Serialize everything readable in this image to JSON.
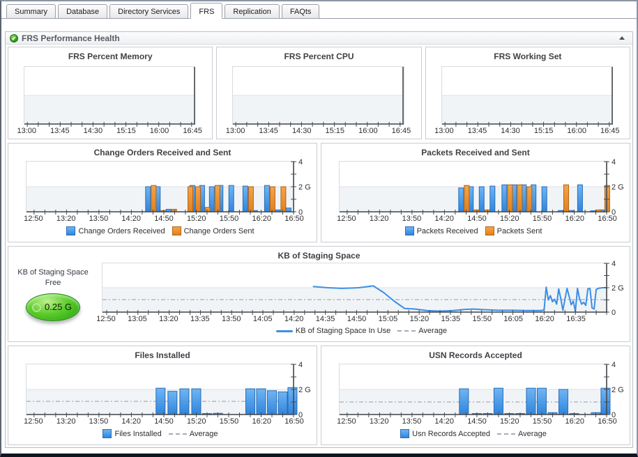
{
  "tabs": {
    "items": [
      {
        "label": "Summary",
        "active": false
      },
      {
        "label": "Database",
        "active": false
      },
      {
        "label": "Directory Services",
        "active": false
      },
      {
        "label": "FRS",
        "active": true
      },
      {
        "label": "Replication",
        "active": false
      },
      {
        "label": "FAQts",
        "active": false
      }
    ]
  },
  "section": {
    "title": "FRS Performance Health",
    "status_icon": "green-check",
    "collapse_icon": "up-triangle"
  },
  "gauge": {
    "title": "KB of Staging Space Free",
    "value": "0.25 G"
  },
  "colors": {
    "bar_blue_top": "#6fb5f4",
    "bar_blue_bottom": "#2f85dc",
    "bar_blue_border": "#2a6cb4",
    "bar_orange_top": "#f4a44b",
    "bar_orange_bottom": "#e0811f",
    "bar_orange_border": "#b26312",
    "line_blue": "#3a8fe6",
    "average_dash": "#a7abb8",
    "band": "#f1f4f7",
    "gridline": "#dce1e6",
    "axis": "#45494e",
    "tick_label": "#2e2e2e"
  },
  "chart_data": [
    {
      "id": "frs-percent-memory",
      "type": "empty",
      "title": "FRS Percent Memory",
      "x": {
        "min": "12:56",
        "max": "16:49",
        "labels": [
          "13:00",
          "13:45",
          "14:30",
          "15:15",
          "16:00",
          "16:45"
        ],
        "minor_step": 15
      },
      "y": {
        "min": 0,
        "max": 4,
        "band_below": 2
      }
    },
    {
      "id": "frs-percent-cpu",
      "type": "empty",
      "title": "FRS Percent CPU",
      "x": {
        "min": "12:56",
        "max": "16:49",
        "labels": [
          "13:00",
          "13:45",
          "14:30",
          "15:15",
          "16:00",
          "16:45"
        ],
        "minor_step": 15
      },
      "y": {
        "min": 0,
        "max": 4,
        "band_below": 2
      }
    },
    {
      "id": "frs-working-set",
      "type": "empty",
      "title": "FRS Working Set",
      "x": {
        "min": "12:56",
        "max": "16:49",
        "labels": [
          "13:00",
          "13:45",
          "14:30",
          "15:15",
          "16:00",
          "16:45"
        ],
        "minor_step": 15
      },
      "y": {
        "min": 0,
        "max": 4,
        "band_below": 2
      }
    },
    {
      "id": "change-orders",
      "type": "bar",
      "pair": true,
      "title": "Change Orders Received and Sent",
      "x": {
        "min": "12:43",
        "max": "16:50",
        "labels": [
          "12:50",
          "13:20",
          "13:50",
          "14:20",
          "14:50",
          "15:20",
          "15:50",
          "16:20",
          "16:50"
        ],
        "minor_step": 10
      },
      "y": {
        "min": 0,
        "max": 4,
        "band_below": 2,
        "ticks": [
          {
            "v": 4,
            "label": "4"
          },
          {
            "v": 2,
            "label": "2 G"
          },
          {
            "v": 0,
            "label": "0"
          }
        ]
      },
      "series": [
        {
          "name": "Change Orders Received",
          "color": "blue",
          "points": [
            [
              "14:38",
              2.0
            ],
            [
              "14:47",
              2.0
            ],
            [
              "14:57",
              0.2
            ],
            [
              "15:19",
              2.1
            ],
            [
              "15:28",
              2.1
            ],
            [
              "15:37",
              2.0
            ],
            [
              "15:45",
              2.1
            ],
            [
              "15:55",
              2.1
            ],
            [
              "16:08",
              2.05
            ],
            [
              "16:17",
              0.1
            ],
            [
              "16:28",
              2.1
            ],
            [
              "16:38",
              0.15
            ],
            [
              "16:48",
              0.3
            ]
          ]
        },
        {
          "name": "Change Orders Sent",
          "color": "orange",
          "points": [
            [
              "14:38",
              2.1
            ],
            [
              "14:47",
              0.1
            ],
            [
              "14:57",
              0.2
            ],
            [
              "15:12",
              2.0
            ],
            [
              "15:19",
              2.0
            ],
            [
              "15:28",
              0.35
            ],
            [
              "15:37",
              2.1
            ],
            [
              "16:08",
              2.0
            ],
            [
              "16:28",
              2.0
            ],
            [
              "16:38",
              2.0
            ]
          ]
        }
      ]
    },
    {
      "id": "packets",
      "type": "bar",
      "pair": true,
      "title": "Packets Received and Sent",
      "x": {
        "min": "12:43",
        "max": "16:50",
        "labels": [
          "12:50",
          "13:20",
          "13:50",
          "14:20",
          "14:50",
          "15:20",
          "15:50",
          "16:20",
          "16:50"
        ],
        "minor_step": 10
      },
      "y": {
        "min": 0,
        "max": 4,
        "band_below": 2,
        "ticks": [
          {
            "v": 4,
            "label": "4"
          },
          {
            "v": 2,
            "label": "2 G"
          },
          {
            "v": 0,
            "label": "0"
          }
        ]
      },
      "series": [
        {
          "name": "Packets Received",
          "color": "blue",
          "points": [
            [
              "14:38",
              1.9
            ],
            [
              "14:47",
              2.0
            ],
            [
              "14:57",
              2.0
            ],
            [
              "15:07",
              2.05
            ],
            [
              "15:18",
              2.15
            ],
            [
              "15:27",
              2.15
            ],
            [
              "15:36",
              2.15
            ],
            [
              "15:45",
              2.15
            ],
            [
              "15:55",
              2.0
            ],
            [
              "16:10",
              0.1
            ],
            [
              "16:20",
              0.1
            ],
            [
              "16:28",
              2.15
            ],
            [
              "16:40",
              0.08
            ],
            [
              "16:48",
              0.15
            ]
          ]
        },
        {
          "name": "Packets Sent",
          "color": "orange",
          "points": [
            [
              "14:38",
              2.1
            ],
            [
              "14:47",
              0.15
            ],
            [
              "14:57",
              0.15
            ],
            [
              "15:18",
              2.15
            ],
            [
              "15:27",
              2.15
            ],
            [
              "15:36",
              2.0
            ],
            [
              "16:10",
              2.15
            ],
            [
              "16:40",
              0.15
            ],
            [
              "16:48",
              2.1
            ]
          ]
        }
      ]
    },
    {
      "id": "staging-space",
      "type": "line",
      "title": "KB of Staging Space",
      "x": {
        "min": "12:48",
        "max": "16:50",
        "labels": [
          "12:50",
          "13:05",
          "13:20",
          "13:35",
          "13:50",
          "14:05",
          "14:20",
          "14:35",
          "14:50",
          "15:05",
          "15:20",
          "15:35",
          "15:50",
          "16:05",
          "16:20",
          "16:35"
        ],
        "minor_step": 5
      },
      "y": {
        "min": 0,
        "max": 4,
        "band_below": 2,
        "ticks": [
          {
            "v": 4,
            "label": "4"
          },
          {
            "v": 2,
            "label": "2 G"
          },
          {
            "v": 0,
            "label": "0"
          }
        ]
      },
      "average": 1.02,
      "average_label": "Average",
      "series": [
        {
          "name": "KB of Staging Space In Use",
          "color": "blue",
          "points": [
            [
              "14:29",
              2.1
            ],
            [
              "14:36",
              2.0
            ],
            [
              "14:43",
              1.95
            ],
            [
              "14:51",
              2.0
            ],
            [
              "14:58",
              2.15
            ],
            [
              "15:03",
              1.6
            ],
            [
              "15:08",
              0.9
            ],
            [
              "15:13",
              0.3
            ],
            [
              "15:18",
              0.25
            ],
            [
              "15:24",
              0.12
            ],
            [
              "15:30",
              0.08
            ],
            [
              "15:36",
              0.12
            ],
            [
              "15:42",
              0.22
            ],
            [
              "15:46",
              0.25
            ],
            [
              "15:51",
              0.2
            ],
            [
              "15:58",
              0.15
            ],
            [
              "16:05",
              0.15
            ],
            [
              "16:12",
              0.13
            ],
            [
              "16:19",
              0.13
            ],
            [
              "16:20",
              0.2
            ],
            [
              "16:21",
              2.05
            ],
            [
              "16:22",
              1.0
            ],
            [
              "16:23",
              1.35
            ],
            [
              "16:24",
              0.85
            ],
            [
              "16:25",
              1.05
            ],
            [
              "16:26",
              0.65
            ],
            [
              "16:27",
              1.9
            ],
            [
              "16:28",
              1.1
            ],
            [
              "16:29",
              0.15
            ],
            [
              "16:31",
              1.95
            ],
            [
              "16:32",
              1.3
            ],
            [
              "16:33",
              0.6
            ],
            [
              "16:34",
              0.9
            ],
            [
              "16:35",
              0.05
            ],
            [
              "16:36",
              1.95
            ],
            [
              "16:37",
              1.1
            ],
            [
              "16:38",
              0.65
            ],
            [
              "16:39",
              0.8
            ],
            [
              "16:40",
              0.55
            ],
            [
              "16:41",
              1.9
            ],
            [
              "16:42",
              1.95
            ],
            [
              "16:43",
              0.35
            ],
            [
              "16:44",
              0.25
            ],
            [
              "16:45",
              1.85
            ],
            [
              "16:46",
              1.95
            ],
            [
              "16:48",
              2.0
            ],
            [
              "16:50",
              2.0
            ]
          ]
        }
      ]
    },
    {
      "id": "files-installed",
      "type": "bar",
      "pair": false,
      "title": "Files Installed",
      "x": {
        "min": "12:43",
        "max": "16:50",
        "labels": [
          "12:50",
          "13:20",
          "13:50",
          "14:20",
          "14:50",
          "15:20",
          "15:50",
          "16:20",
          "16:50"
        ],
        "minor_step": 10
      },
      "y": {
        "min": 0,
        "max": 4,
        "band_below": 2,
        "ticks": [
          {
            "v": 4,
            "label": "4"
          },
          {
            "v": 2,
            "label": "2 G"
          },
          {
            "v": 0,
            "label": "0"
          }
        ]
      },
      "average": 1.05,
      "average_label": "Average",
      "series": [
        {
          "name": "Files Installed",
          "color": "blue",
          "points": [
            [
              "14:47",
              2.1
            ],
            [
              "14:58",
              1.85
            ],
            [
              "15:09",
              2.05
            ],
            [
              "15:20",
              2.05
            ],
            [
              "15:30",
              0.08
            ],
            [
              "15:40",
              0.1
            ],
            [
              "16:10",
              2.05
            ],
            [
              "16:20",
              2.05
            ],
            [
              "16:30",
              1.9
            ],
            [
              "16:40",
              1.8
            ],
            [
              "16:49",
              2.15
            ]
          ]
        }
      ]
    },
    {
      "id": "usn-records",
      "type": "bar",
      "pair": false,
      "title": "USN Records Accepted",
      "x": {
        "min": "12:43",
        "max": "16:50",
        "labels": [
          "12:50",
          "13:20",
          "13:50",
          "14:20",
          "14:50",
          "15:20",
          "15:50",
          "16:20",
          "16:50"
        ],
        "minor_step": 10
      },
      "y": {
        "min": 0,
        "max": 4,
        "band_below": 2,
        "ticks": [
          {
            "v": 4,
            "label": "4"
          },
          {
            "v": 2,
            "label": "2 G"
          },
          {
            "v": 0,
            "label": "0"
          }
        ]
      },
      "average": 1.0,
      "average_label": "Average",
      "series": [
        {
          "name": "Usn Records Accepted",
          "color": "blue",
          "points": [
            [
              "14:38",
              2.05
            ],
            [
              "14:50",
              0.08
            ],
            [
              "15:00",
              0.08
            ],
            [
              "15:10",
              2.1
            ],
            [
              "15:20",
              0.08
            ],
            [
              "15:30",
              0.08
            ],
            [
              "15:40",
              2.1
            ],
            [
              "15:50",
              2.1
            ],
            [
              "16:00",
              0.15
            ],
            [
              "16:10",
              2.0
            ],
            [
              "16:20",
              0.08
            ],
            [
              "16:40",
              0.15
            ],
            [
              "16:49",
              2.1
            ]
          ]
        }
      ]
    }
  ]
}
